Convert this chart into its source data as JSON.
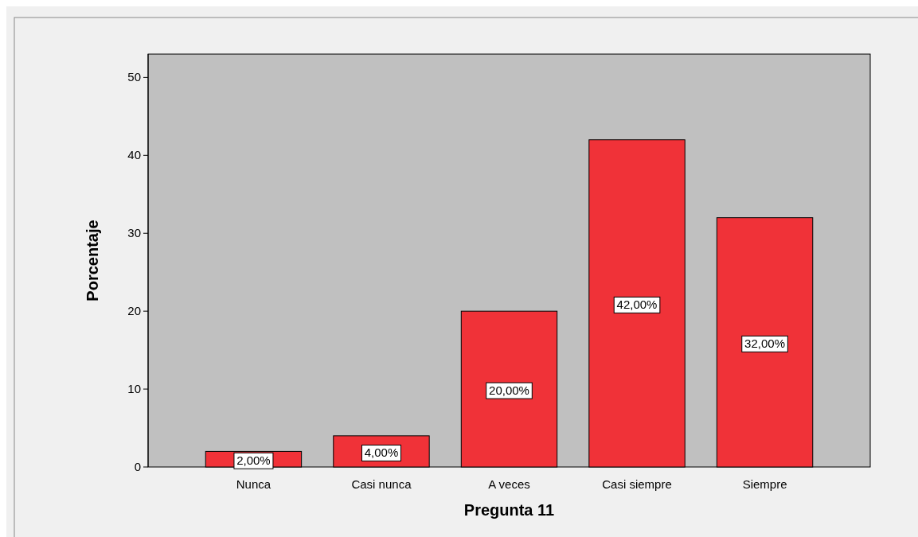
{
  "chart_data": {
    "type": "bar",
    "xlabel": "Pregunta 11",
    "ylabel": "Porcentaje",
    "categories": [
      "Nunca",
      "Casi nunca",
      "A veces",
      "Casi siempre",
      "Siempre"
    ],
    "values": [
      2,
      4,
      20,
      42,
      32
    ],
    "value_labels": [
      "2,00%",
      "4,00%",
      "20,00%",
      "42,00%",
      "32,00%"
    ],
    "color": "#f03238",
    "ylim": [
      0,
      53
    ],
    "yticks": [
      0,
      10,
      20,
      30,
      40,
      50
    ],
    "grid": false
  }
}
